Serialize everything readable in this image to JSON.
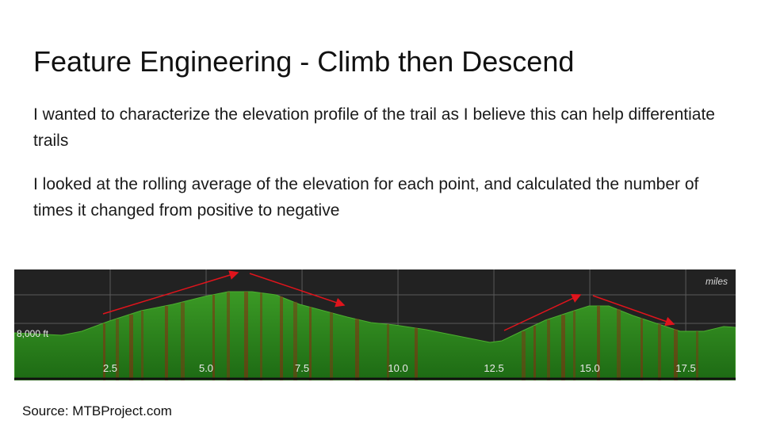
{
  "slide": {
    "title": "Feature Engineering - Climb then Descend",
    "paragraphs": [
      "I wanted to characterize the elevation profile of the trail as I believe this can help differentiate trails",
      "I looked at the rolling average of the elevation for each point, and calculated the number of times it changed from positive to negative"
    ],
    "source": "Source: MTBProject.com"
  },
  "chart_data": {
    "type": "area",
    "unit_label": "miles",
    "y_label_text": "8,000 ft",
    "x_ticks": [
      2.5,
      5.0,
      7.5,
      10.0,
      12.5,
      15.0,
      17.5
    ],
    "x_tick_labels": [
      "2.5",
      "5.0",
      "7.5",
      "10.0",
      "12.5",
      "15.0",
      "17.5"
    ],
    "xlim": [
      0,
      18.8
    ],
    "colors": {
      "background": "#222222",
      "fill": "#2e7d1e",
      "grid": "#5a5a5a",
      "arrow": "#e0141c",
      "text": "#e8e8e8"
    }
  }
}
